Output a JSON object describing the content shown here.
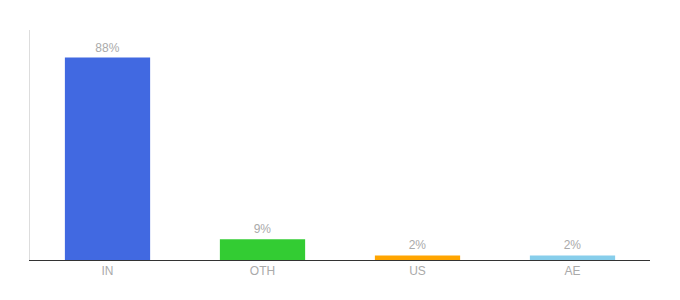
{
  "chart_data": {
    "type": "bar",
    "categories": [
      "IN",
      "OTH",
      "US",
      "AE"
    ],
    "values": [
      88,
      9,
      2,
      2
    ],
    "value_labels": [
      "88%",
      "9%",
      "2%",
      "2%"
    ],
    "colors": [
      "#4169E1",
      "#33CC33",
      "#FFA500",
      "#87CEEB"
    ],
    "ylim": [
      0,
      100
    ],
    "grid": false,
    "data_labels": true,
    "tick_labels": "x"
  }
}
